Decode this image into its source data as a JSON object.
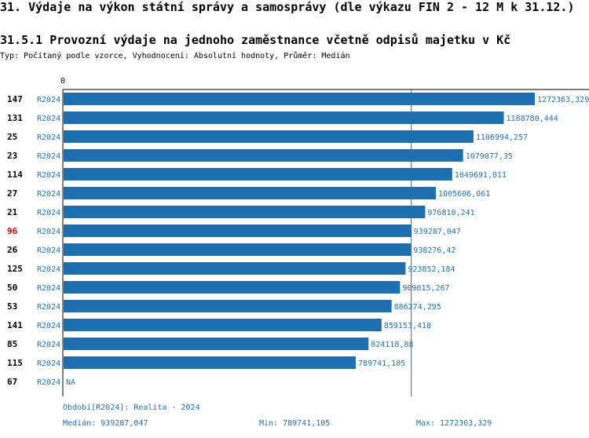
{
  "header": {
    "title": "31. Výdaje na výkon státní správy a samosprávy (dle výkazu FIN 2 - 12 M k 31.12.)",
    "subtitle": "31.5.1 Provozní výdaje na jednoho zaměstnance včetně odpisů majetku v Kč",
    "type_line": "Typ: Počítaný podle vzorce, Vyhodnocení: Absolutní hodnoty, Průměr: Medián"
  },
  "colors": {
    "bar": "#1f6fb0",
    "value_text": "#1f6fb0",
    "highlight": "#cc0000",
    "axis": "#000000"
  },
  "chart_data": {
    "type": "bar",
    "orientation": "horizontal",
    "x_axis_label": "0",
    "x_range": [
      0,
      1272363.329
    ],
    "median": 939287.047,
    "rows": [
      {
        "id": "147",
        "period": "R2024",
        "value": 1272363.329,
        "label": "1272363,329",
        "highlight": false
      },
      {
        "id": "131",
        "period": "R2024",
        "value": 1188780.444,
        "label": "1188780,444",
        "highlight": false
      },
      {
        "id": "25",
        "period": "R2024",
        "value": 1106994.257,
        "label": "1106994,257",
        "highlight": false
      },
      {
        "id": "23",
        "period": "R2024",
        "value": 1079077.35,
        "label": "1079077,35",
        "highlight": false
      },
      {
        "id": "114",
        "period": "R2024",
        "value": 1049691.011,
        "label": "1049691,011",
        "highlight": false
      },
      {
        "id": "27",
        "period": "R2024",
        "value": 1005606.061,
        "label": "1005606,061",
        "highlight": false
      },
      {
        "id": "21",
        "period": "R2024",
        "value": 976810.241,
        "label": "976810,241",
        "highlight": false
      },
      {
        "id": "96",
        "period": "R2024",
        "value": 939287.047,
        "label": "939287,047",
        "highlight": true
      },
      {
        "id": "26",
        "period": "R2024",
        "value": 938276.42,
        "label": "938276,42",
        "highlight": false
      },
      {
        "id": "125",
        "period": "R2024",
        "value": 923852.184,
        "label": "923852,184",
        "highlight": false
      },
      {
        "id": "50",
        "period": "R2024",
        "value": 909015.267,
        "label": "909015,267",
        "highlight": false
      },
      {
        "id": "53",
        "period": "R2024",
        "value": 886274.295,
        "label": "886274,295",
        "highlight": false
      },
      {
        "id": "141",
        "period": "R2024",
        "value": 859153.418,
        "label": "859153,418",
        "highlight": false
      },
      {
        "id": "85",
        "period": "R2024",
        "value": 824118.88,
        "label": "824118,88",
        "highlight": false
      },
      {
        "id": "115",
        "period": "R2024",
        "value": 789741.105,
        "label": "789741,105",
        "highlight": false
      },
      {
        "id": "67",
        "period": "R2024",
        "value": null,
        "label": "NA",
        "highlight": false
      }
    ]
  },
  "footer": {
    "period": "Období[R2024]: Realita - 2024",
    "median": "Medián: 939287,047",
    "min": "Min: 789741,105",
    "max": "Max: 1272363,329"
  }
}
